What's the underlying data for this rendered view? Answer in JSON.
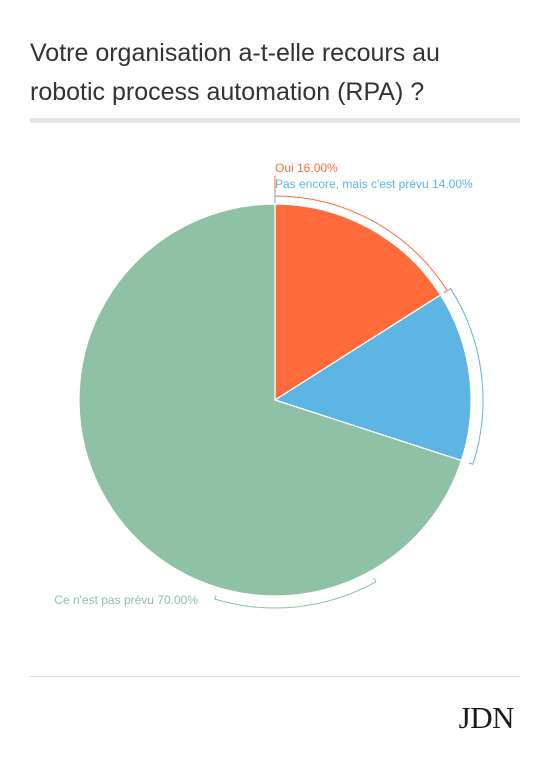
{
  "title": "Votre organisation a-t-elle recours au robotic process automation (RPA) ?",
  "logo": "JDN",
  "chart_data": {
    "type": "pie",
    "title": "Votre organisation a-t-elle recours au robotic process automation (RPA) ?",
    "slices": [
      {
        "label": "Oui",
        "value": 16.0,
        "display": "Oui 16.00%",
        "color": "#ff6b3a"
      },
      {
        "label": "Pas encore, mais c'est prévu",
        "value": 14.0,
        "display": "Pas encore, mais c'est prévu 14.00%",
        "color": "#5db5e4"
      },
      {
        "label": "Ce n'est pas prévu",
        "value": 70.0,
        "display": "Ce n'est pas prévu 70.00%",
        "color": "#8fc1a6"
      }
    ],
    "start_angle": "12 o'clock, clockwise",
    "legend": "none (labels beside slices)"
  }
}
